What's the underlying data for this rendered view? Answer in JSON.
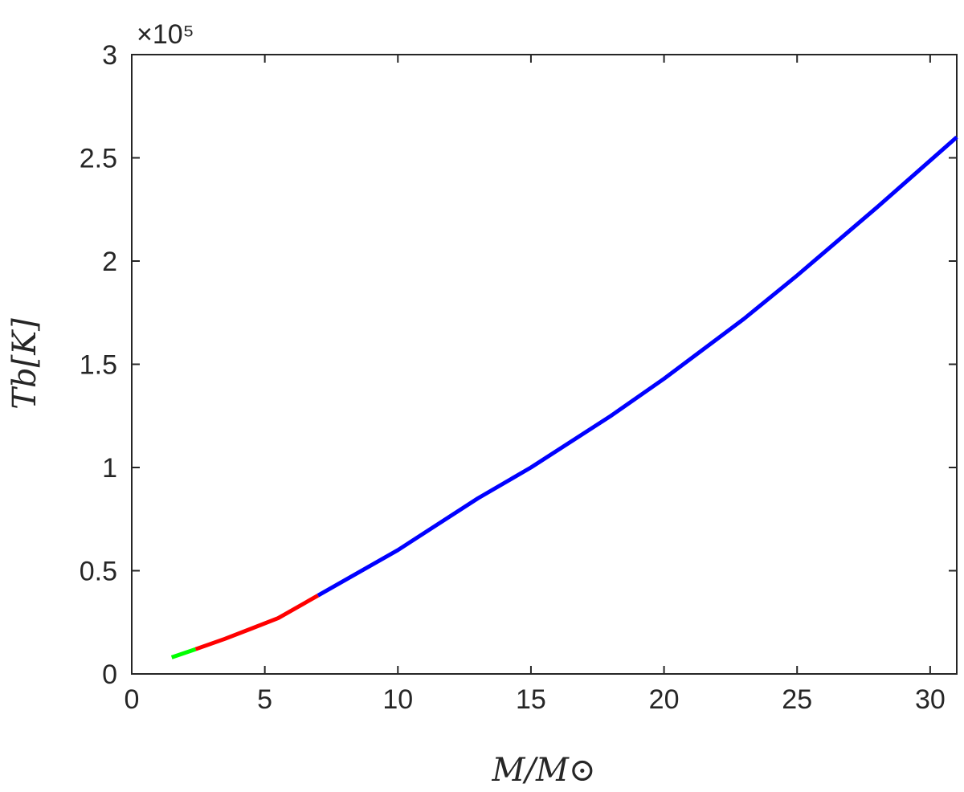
{
  "chart_data": {
    "type": "line",
    "xlabel": "M/M⊙",
    "ylabel": "Tb[K]",
    "xlim": [
      0,
      31
    ],
    "ylim": [
      0,
      3
    ],
    "y_exponent_label": "×10⁵",
    "x_ticks": [
      "0",
      "5",
      "10",
      "15",
      "20",
      "25",
      "30"
    ],
    "y_ticks": [
      "0",
      "0.5",
      "1",
      "1.5",
      "2",
      "2.5",
      "3"
    ],
    "grid": false,
    "series": [
      {
        "color": "#00ff00",
        "x": [
          1.5,
          2.4
        ],
        "y": [
          0.08,
          0.12
        ]
      },
      {
        "color": "#ff0000",
        "x": [
          2.4,
          3.5,
          4.5,
          5.5,
          7.0
        ],
        "y": [
          0.12,
          0.17,
          0.22,
          0.27,
          0.38
        ]
      },
      {
        "color": "#0000ff",
        "x": [
          7.0,
          10,
          13,
          15,
          18,
          20,
          23,
          25,
          28,
          31
        ],
        "y": [
          0.38,
          0.6,
          0.85,
          1.0,
          1.25,
          1.43,
          1.72,
          1.93,
          2.26,
          2.6
        ]
      }
    ]
  }
}
